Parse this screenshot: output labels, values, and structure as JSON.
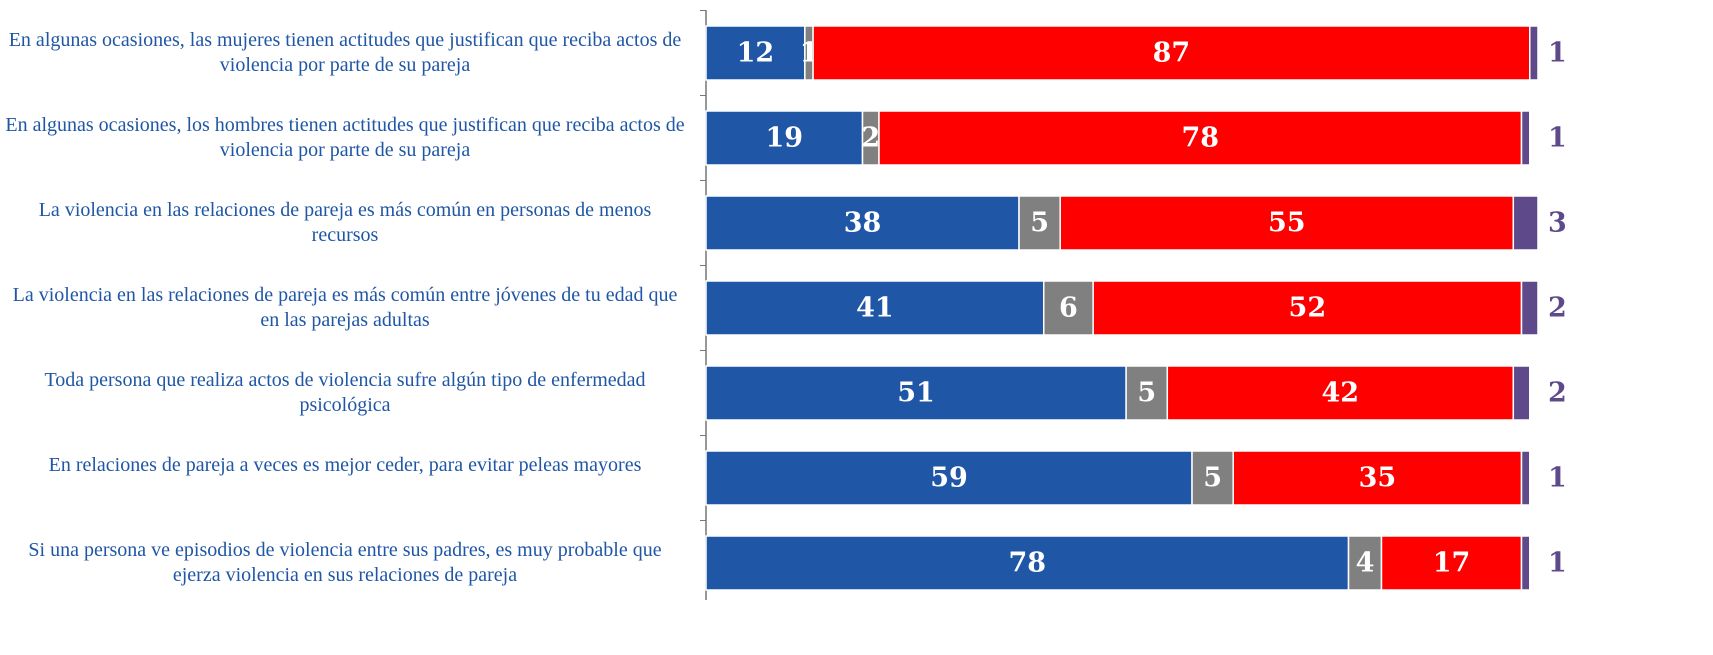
{
  "chart_data": {
    "type": "stacked-bar-horizontal",
    "categories": [
      "En algunas ocasiones, las mujeres tienen actitudes que justifican que reciba actos de violencia por parte de su pareja",
      "En algunas ocasiones, los hombres tienen actitudes que justifican que reciba actos de violencia por parte de su pareja",
      "La violencia en las relaciones de pareja es más común en personas de menos recursos",
      "La violencia en las relaciones de pareja es más común entre jóvenes de tu edad que en las parejas adultas",
      "Toda persona que realiza actos de violencia sufre algún tipo de enfermedad psicológica",
      "En relaciones de pareja a veces es mejor ceder, para evitar peleas mayores",
      "Si una persona ve episodios de violencia entre sus padres, es muy probable que ejerza violencia en sus relaciones de pareja"
    ],
    "series": [
      {
        "color": "#1f56a5",
        "values": [
          12,
          19,
          38,
          41,
          51,
          59,
          78
        ]
      },
      {
        "color": "#808080",
        "values": [
          1,
          2,
          5,
          6,
          5,
          5,
          4
        ]
      },
      {
        "color": "#ff0000",
        "values": [
          87,
          78,
          55,
          52,
          42,
          35,
          17
        ]
      },
      {
        "color": "#5e4a8a",
        "values": [
          1,
          1,
          3,
          2,
          2,
          1,
          1
        ]
      }
    ]
  }
}
